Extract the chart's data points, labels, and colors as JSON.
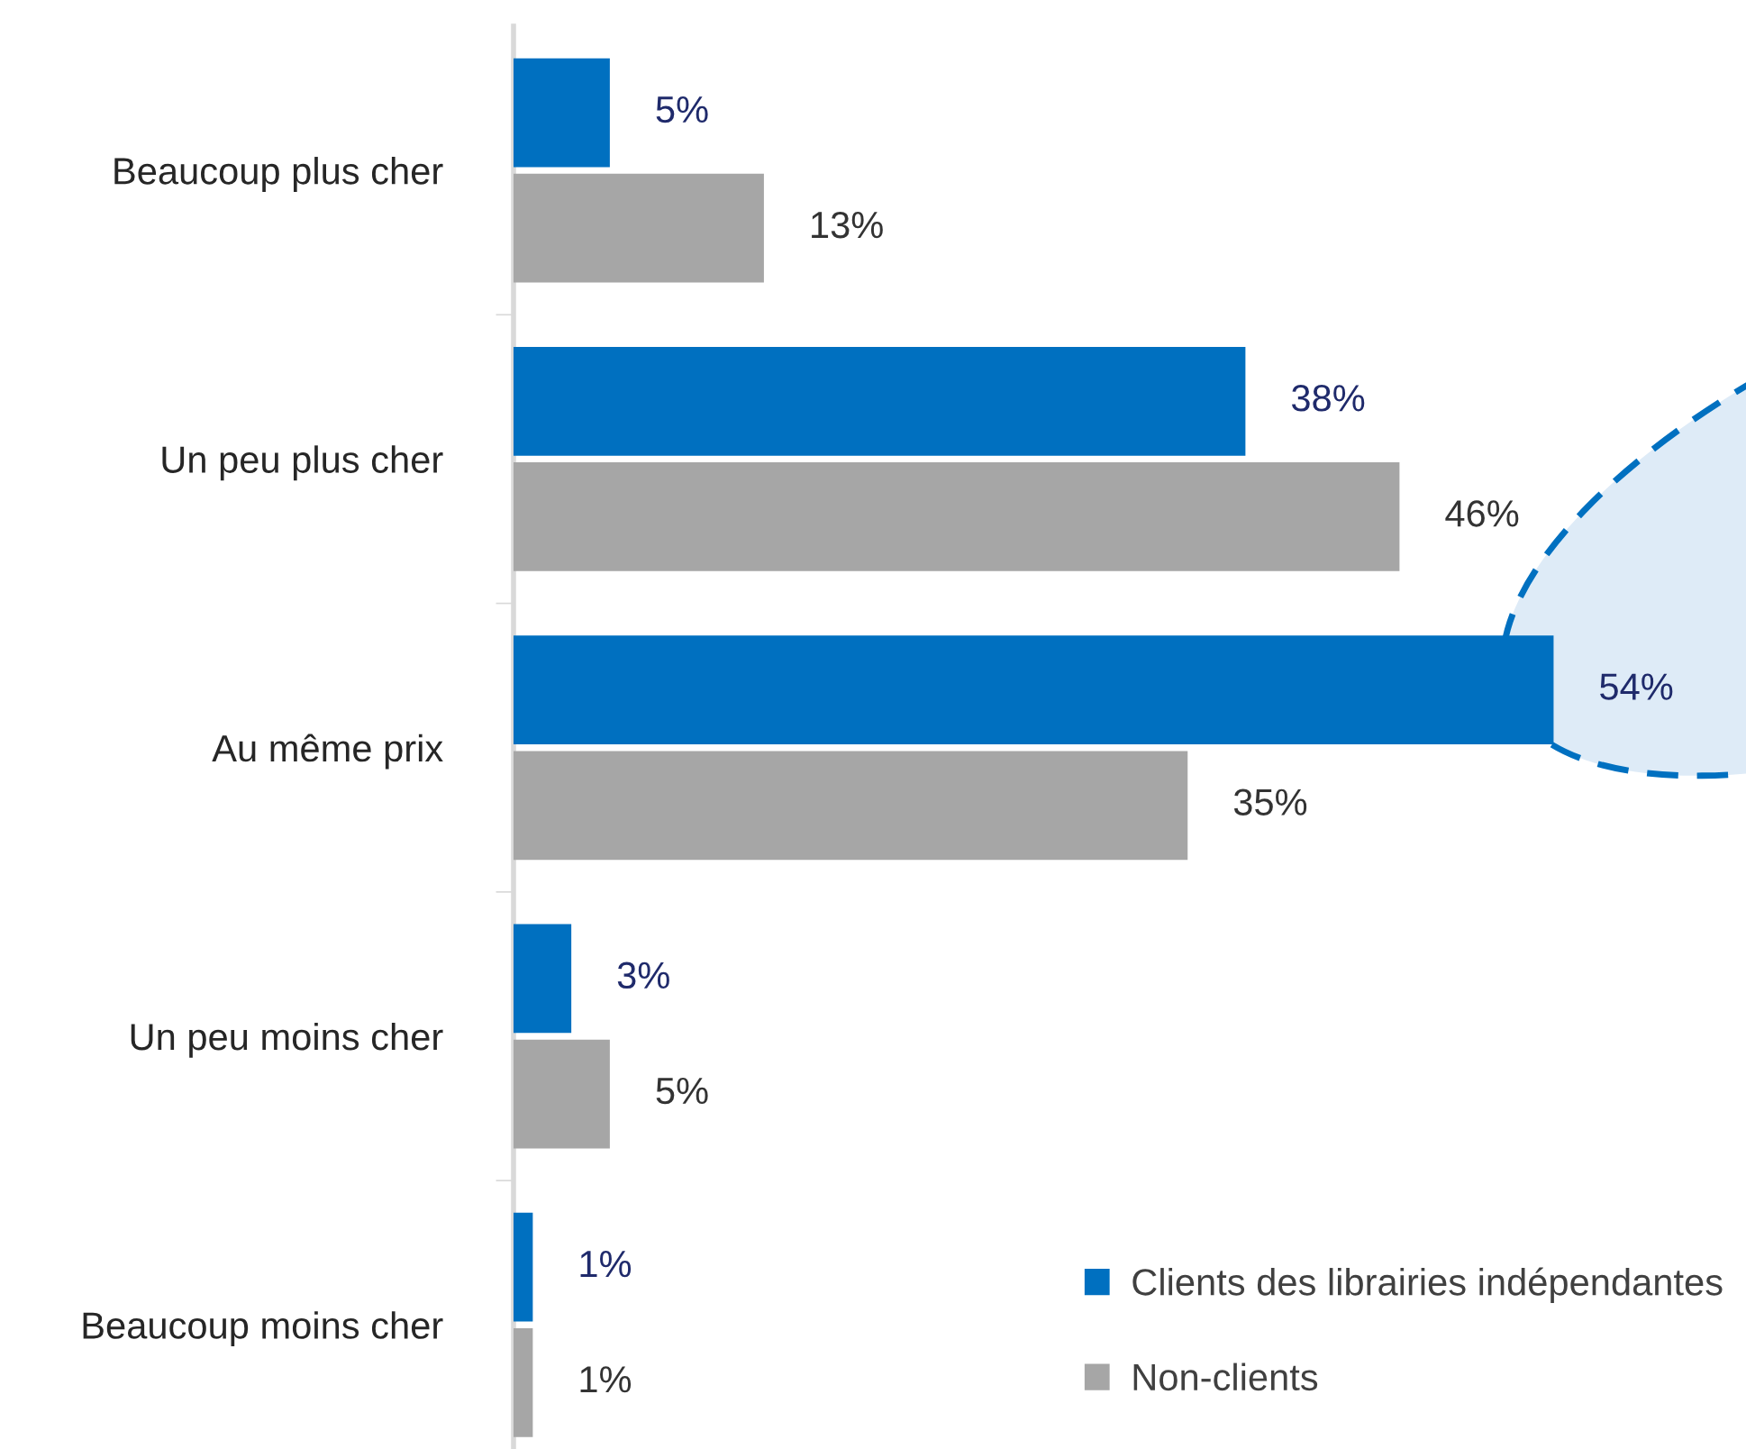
{
  "chart_data": {
    "type": "bar",
    "orientation": "horizontal",
    "categories": [
      "Beaucoup plus cher",
      "Un peu plus cher",
      "Au même prix",
      "Un peu moins cher",
      "Beaucoup moins cher"
    ],
    "series": [
      {
        "name": "Clients des librairies indépendantes",
        "color": "#0070c0",
        "values": [
          5,
          38,
          54,
          3,
          1
        ],
        "value_labels": [
          "5%",
          "38%",
          "54%",
          "3%",
          "1%"
        ]
      },
      {
        "name": "Non-clients",
        "color": "#a6a6a6",
        "values": [
          13,
          46,
          35,
          5,
          1
        ],
        "value_labels": [
          "13%",
          "46%",
          "35%",
          "5%",
          "1%"
        ]
      }
    ],
    "tick_labels": "y",
    "grid": false,
    "legend": "bottom right"
  }
}
